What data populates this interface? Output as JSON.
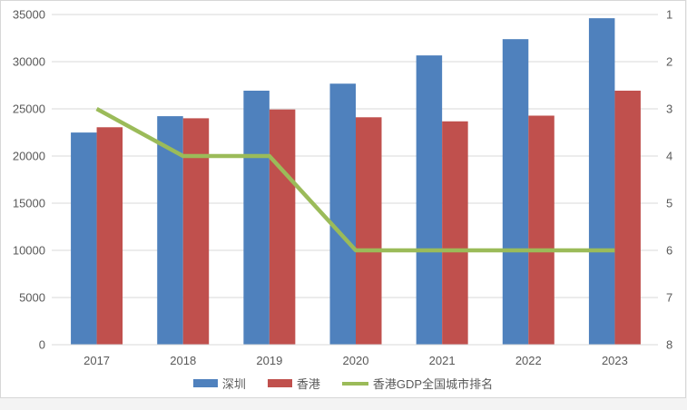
{
  "chart_data": {
    "type": "bar",
    "title": "",
    "categories": [
      "2017",
      "2018",
      "2019",
      "2020",
      "2021",
      "2022",
      "2023"
    ],
    "series": [
      {
        "name": "深圳",
        "kind": "bar",
        "axis": "left",
        "color": "#4F81BD",
        "values": [
          22490,
          24222,
          26927,
          27670,
          30665,
          32388,
          34606
        ]
      },
      {
        "name": "香港",
        "kind": "bar",
        "axis": "left",
        "color": "#C0504D",
        "values": [
          23049,
          24001,
          24934,
          24107,
          23676,
          24280,
          26928
        ]
      },
      {
        "name": "香港GDP全国城市排名",
        "kind": "line",
        "axis": "right",
        "color": "#9BBB59",
        "values": [
          3,
          4,
          4,
          6,
          6,
          6,
          6
        ]
      }
    ],
    "left_axis": {
      "min": 0,
      "max": 35000,
      "step": 5000,
      "tick_labels": [
        "0",
        "5000",
        "10000",
        "15000",
        "20000",
        "25000",
        "30000",
        "35000"
      ]
    },
    "right_axis": {
      "min": 1,
      "max": 8,
      "step": 1,
      "reversed": true,
      "tick_labels": [
        "1",
        "2",
        "3",
        "4",
        "5",
        "6",
        "7",
        "8"
      ]
    },
    "grid": true,
    "legend_position": "bottom",
    "gridline_color": "#D9D9D9",
    "label_color": "#595959",
    "plot_background": "#FFFFFF"
  }
}
